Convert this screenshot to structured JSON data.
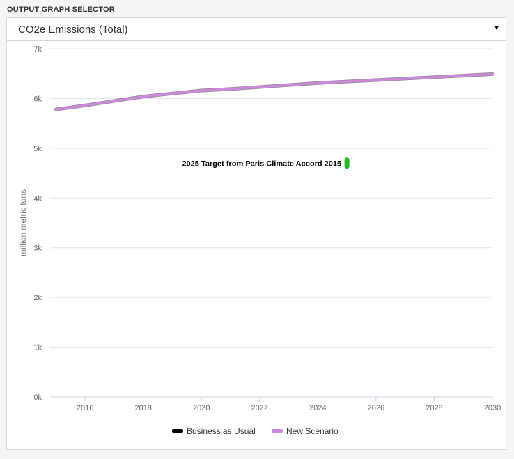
{
  "selector": {
    "title": "OUTPUT GRAPH SELECTOR",
    "selected": "CO2e Emissions (Total)",
    "arrow_icon": "caret-down-icon"
  },
  "chart_data": {
    "type": "line",
    "title": "",
    "xlabel": "",
    "ylabel": "million metric tons",
    "xlim": [
      2014.8,
      2030
    ],
    "ylim": [
      0,
      7000
    ],
    "x_ticks": [
      2016,
      2018,
      2020,
      2022,
      2024,
      2026,
      2028,
      2030
    ],
    "x_tick_labels": [
      "2016",
      "2018",
      "2020",
      "2022",
      "2024",
      "2026",
      "2028",
      "2030"
    ],
    "y_ticks": [
      0,
      1000,
      2000,
      3000,
      4000,
      5000,
      6000,
      7000
    ],
    "y_tick_labels": [
      "0k",
      "1k",
      "2k",
      "3k",
      "4k",
      "5k",
      "6k",
      "7k"
    ],
    "grid": true,
    "legend_position": "bottom",
    "series": [
      {
        "name": "Business as Usual",
        "color": "#000000",
        "x": [
          2015,
          2016,
          2017,
          2018,
          2019,
          2020,
          2021,
          2022,
          2023,
          2024,
          2025,
          2026,
          2027,
          2028,
          2029,
          2030
        ],
        "values": [
          5780,
          5860,
          5950,
          6040,
          6100,
          6160,
          6190,
          6230,
          6270,
          6310,
          6340,
          6370,
          6400,
          6430,
          6460,
          6490
        ]
      },
      {
        "name": "New Scenario",
        "color": "#cc88dd",
        "x": [
          2015,
          2016,
          2017,
          2018,
          2019,
          2020,
          2021,
          2022,
          2023,
          2024,
          2025,
          2026,
          2027,
          2028,
          2029,
          2030
        ],
        "values": [
          5780,
          5860,
          5950,
          6040,
          6100,
          6160,
          6190,
          6230,
          6270,
          6310,
          6340,
          6370,
          6400,
          6430,
          6460,
          6490
        ]
      }
    ],
    "annotations": [
      {
        "label": "2025 Target from Paris Climate Accord 2015",
        "x": 2025,
        "y": 4700,
        "color": "#22bb22"
      }
    ]
  }
}
